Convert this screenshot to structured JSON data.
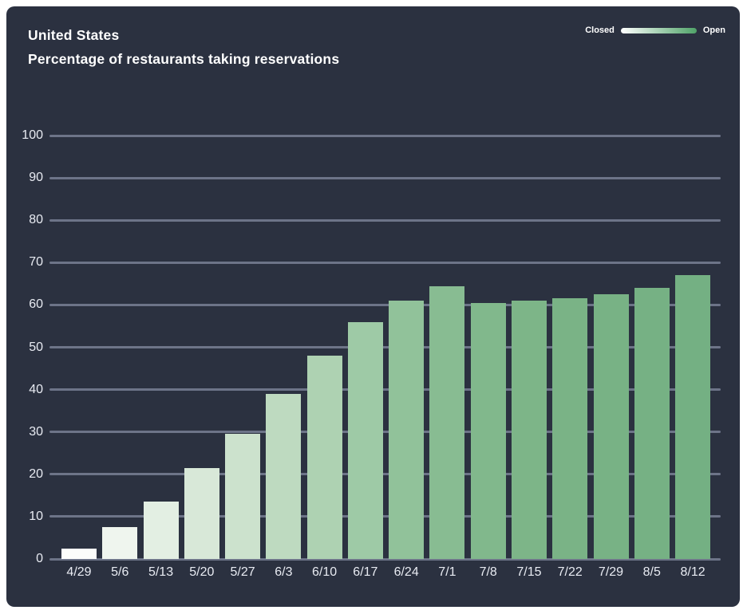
{
  "header": {
    "title": "United States",
    "subtitle": "Percentage of restaurants taking reservations",
    "legend": {
      "left_label": "Closed",
      "right_label": "Open"
    }
  },
  "colors": {
    "page_background": "#ffffff",
    "card_background": "#2b3140",
    "gridline": "#6d7488",
    "axis_label": "#e8ebf2",
    "title_text": "#ffffff",
    "legend_text": "#ffffff",
    "legend_gradient_start": "#ffffff",
    "legend_gradient_end": "#4fa368"
  },
  "chart_data": {
    "type": "bar",
    "title": "United States",
    "subtitle": "Percentage of restaurants taking reservations",
    "categories": [
      "4/29",
      "5/6",
      "5/13",
      "5/20",
      "5/27",
      "6/3",
      "6/10",
      "6/17",
      "6/24",
      "7/1",
      "7/8",
      "7/15",
      "7/22",
      "7/29",
      "8/5",
      "8/12"
    ],
    "values": [
      2.5,
      7.5,
      13.5,
      21.5,
      29.5,
      39,
      48,
      56,
      61,
      64.5,
      60.5,
      61,
      61.5,
      62.5,
      64,
      67
    ],
    "bar_colors": [
      "#fcfdfb",
      "#eff5ee",
      "#e3efe3",
      "#d8e8d8",
      "#cce2cd",
      "#bedac0",
      "#aed2b2",
      "#9ecaa6",
      "#91c29a",
      "#88bc92",
      "#81b88c",
      "#7db588",
      "#7ab386",
      "#78b285",
      "#76b184",
      "#74b083"
    ],
    "xlabel": "",
    "ylabel": "",
    "ylim": [
      0,
      100
    ],
    "yticks": [
      0,
      10,
      20,
      30,
      40,
      50,
      60,
      70,
      80,
      90,
      100
    ],
    "grid": true,
    "legend": {
      "min_label": "Closed",
      "max_label": "Open",
      "position": "top-right"
    }
  }
}
